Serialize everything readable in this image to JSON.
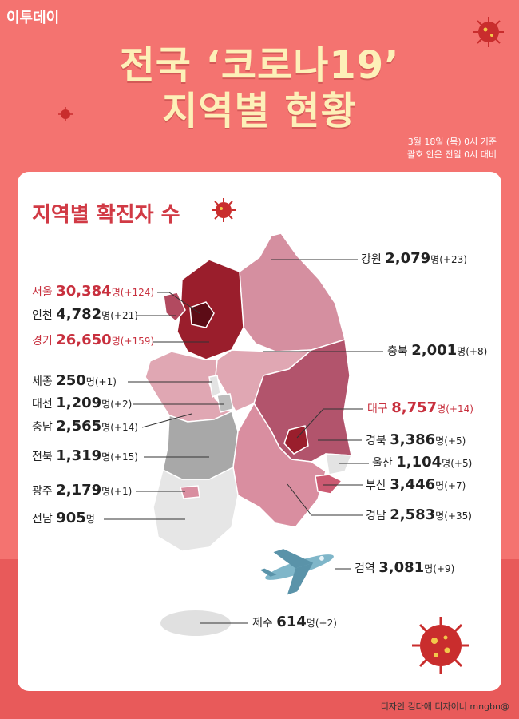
{
  "brand": "이투데이",
  "title_line1": "전국 ‘코로나19’",
  "title_line2": "지역별 현황",
  "note_line1": "3월 18일 (목) 0시 기준",
  "note_line2": "괄호 안은 전일 0시 대비",
  "section_title": "지역별 확진자 수",
  "unit": "명",
  "regions": {
    "gangwon": {
      "name": "강원",
      "count": "2,079",
      "inc": "(+23)"
    },
    "seoul": {
      "name": "서울",
      "count": "30,384",
      "inc": "(+124)"
    },
    "incheon": {
      "name": "인천",
      "count": "4,782",
      "inc": "(+21)"
    },
    "gyeonggi": {
      "name": "경기",
      "count": "26,650",
      "inc": "(+159)"
    },
    "chungbuk": {
      "name": "충북",
      "count": "2,001",
      "inc": "(+8)"
    },
    "sejong": {
      "name": "세종",
      "count": "250",
      "inc": "(+1)"
    },
    "daejeon": {
      "name": "대전",
      "count": "1,209",
      "inc": "(+2)"
    },
    "chungnam": {
      "name": "충남",
      "count": "2,565",
      "inc": "(+14)"
    },
    "daegu": {
      "name": "대구",
      "count": "8,757",
      "inc": "(+14)"
    },
    "gyeongbuk": {
      "name": "경북",
      "count": "3,386",
      "inc": "(+5)"
    },
    "jeonbuk": {
      "name": "전북",
      "count": "1,319",
      "inc": "(+15)"
    },
    "ulsan": {
      "name": "울산",
      "count": "1,104",
      "inc": "(+5)"
    },
    "gwangju": {
      "name": "광주",
      "count": "2,179",
      "inc": "(+1)"
    },
    "busan": {
      "name": "부산",
      "count": "3,446",
      "inc": "(+7)"
    },
    "jeonnam": {
      "name": "전남",
      "count": "905",
      "inc": ""
    },
    "gyeongnam": {
      "name": "경남",
      "count": "2,583",
      "inc": "(+35)"
    },
    "quarantine": {
      "name": "검역",
      "count": "3,081",
      "inc": "(+9)"
    },
    "jeju": {
      "name": "제주",
      "count": "614",
      "inc": "(+2)"
    }
  },
  "credit": "디자인 김다애 디자이너 mngbn@",
  "colors": {
    "background": "#f47370",
    "title": "#fdf0b8",
    "accent": "#c8303e",
    "map_light": "#e0e0e0",
    "map_dark": "#8e1b2a"
  }
}
